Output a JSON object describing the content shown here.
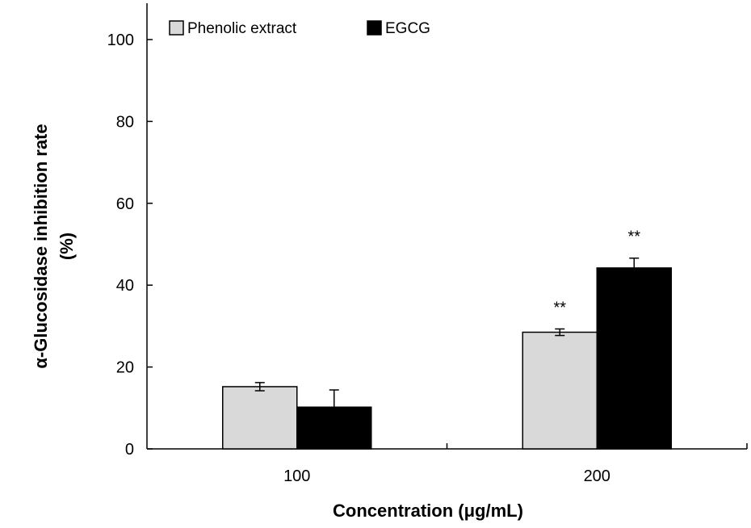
{
  "chart_data": {
    "type": "bar",
    "title": "",
    "xlabel": "Concentration (μg/mL)",
    "ylabel_lines": [
      "α-Glucosidase inhibition rate",
      "(%)"
    ],
    "ylim": [
      0,
      100
    ],
    "yticks": [
      0,
      20,
      40,
      60,
      80,
      100
    ],
    "categories": [
      "100",
      "200"
    ],
    "series": [
      {
        "name": "Phenolic extract",
        "color": "#d9d9d9",
        "values": [
          15.2,
          28.5
        ],
        "errors": [
          1.0,
          0.8
        ]
      },
      {
        "name": "EGCG",
        "color": "#000000",
        "values": [
          10.2,
          44.2
        ],
        "errors": [
          4.2,
          2.4
        ]
      }
    ],
    "annotations": [
      {
        "text": "**",
        "category": "200",
        "series": "Phenolic extract"
      },
      {
        "text": "**",
        "category": "200",
        "series": "EGCG"
      }
    ],
    "legend": "top-left",
    "grid": false
  }
}
